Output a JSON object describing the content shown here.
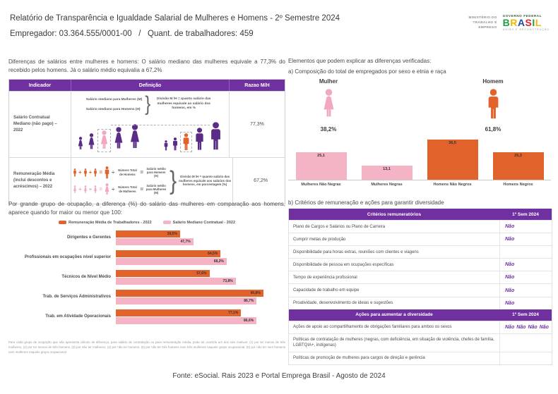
{
  "header": {
    "title": "Relatório de Transparência e Igualdade Salarial de Mulheres e Homens - 2º Semestre 2024",
    "employer": "Empregador: 03.364.555/0001-00",
    "separator": "/",
    "workers": "Quant. de trabalhadores: 459",
    "logo": {
      "ministry": "MINISTÉRIO DO TRABALHO E EMPREGO",
      "gov": "GOVERNO FEDERAL",
      "brand": "BRASIL",
      "tagline": "UNIÃO E RECONSTRUÇÃO",
      "brand_colors": [
        "#1e9e46",
        "#f2b705",
        "#1d4f9e",
        "#d92525",
        "#1e9e46",
        "#f2b705"
      ]
    }
  },
  "colors": {
    "purple": "#5b2c87",
    "header_purple": "#7030A0",
    "orange": "#e2622b",
    "pink": "#f2a9c0",
    "pink_bar": "#f5b3c6"
  },
  "left": {
    "intro": "Diferenças de salários entre mulheres e homens: O salário mediano das mulheres equivale a 77,3% do recebido pelos homens. Já o salário médio equivalia a 67,2%",
    "table": {
      "headers": [
        "Indicador",
        "Definição",
        "Razao M/H"
      ],
      "rows": [
        {
          "indicator": "Salário Contratual Mediano (não pago) – 2022",
          "def_line1": "Salário mediano para Mulheres (M)",
          "def_line2": "Salário mediano para Homens (H)",
          "def_result": "Divisão M /H = quanto salário das mulheres equivale ao salário dos homens, em %",
          "ratio": "77,3%"
        },
        {
          "indicator": "Remuneração Média (inclui descontos e acréscimos) – 2022",
          "men_divisor": "Número Total de Homens",
          "men_result": "Salário médio para Homens (H)",
          "women_divisor": "Número Total de Mulheres",
          "women_result": "Salário médio para Mulheres (M)",
          "def_result": "Divisão M /H = quanto salário das mulheres equivale aos salários dos homens, em porcentagem (%)",
          "ratio": "67,2%"
        }
      ]
    },
    "occupation_intro": "Por grande grupo de ocupação, a diferença (%) do salário das mulheres em comparação aos homens, aparece quando for maior ou menor que 100:",
    "footnote": "Para cada grupo de ocupação que não apresenta cálculo de diferença, para salário de contratação ou para remuneração média, pode ter ocorrido um dos seis motivos: (1) por ter menos de três mulheres, (2) por ter menos de três homens, (3) por não ter mulheres, (4) por não ter homens, (5) por não ter três homens nem três mulheres naquele grupo ocupacional, (6) por não ter nem homens nem mulheres naquele grupo ocupacional"
  },
  "right": {
    "intro": "Elementos que podem explicar as diferenças verificadas:",
    "section_a": "a) Composição do total de empregados por sexo e etnia e raça",
    "mulher": {
      "label": "Mulher",
      "value": "38,2%"
    },
    "homem": {
      "label": "Homem",
      "value": "61,8%"
    },
    "section_b": "b) Critérios de remuneração e ações para garantir diversidade",
    "no_label": "Não",
    "criteria": {
      "header": "Critérios remuneratórios",
      "period": "1º Sem 2024",
      "rows": [
        {
          "label": "Plano de Cargos e Salários ou Plano de Carreira",
          "badges": 1
        },
        {
          "label": "Cumprir metas de produção",
          "badges": 1
        },
        {
          "label": "Disponibilidade para horas extras, reuniões com clientes e viagens",
          "badges": 0
        },
        {
          "label": "Disponibilidade de pessoa em ocupações específicas",
          "badges": 1
        },
        {
          "label": "Tempo de experiência profissional",
          "badges": 1
        },
        {
          "label": "Capacidade de trabalho em equipe",
          "badges": 1
        },
        {
          "label": "Proatividade, desenvolvimento de ideias e sugestões",
          "badges": 1
        }
      ]
    },
    "actions": {
      "header": "Ações para aumentar a diversidade",
      "period": "1º Sem 2024",
      "rows": [
        {
          "label": "Ações de apoio ao compartilhamento de obrigações familiares para ambos os sexos",
          "badges": 4
        },
        {
          "label": "Políticas de contratação de mulheres (negras, com deficiência, em situação de violência, chefes de família, LGBTQIA+, indígenas)",
          "badges": 0
        },
        {
          "label": "Políticas de promoção de mulheres para cargos de direção e gerência",
          "badges": 0
        }
      ]
    }
  },
  "footer": {
    "source": "Fonte: eSocial. Rais 2023 e Portal Emprega Brasil - Agosto de 2024"
  },
  "chart_data": [
    {
      "id": "composition-by-sex-race",
      "type": "bar",
      "title": "a) Composição do total de empregados por sexo e etnia e raça",
      "categories": [
        "Mulheres Não Negras",
        "Mulheres Negras",
        "Homens Não Negros",
        "Homens Negros"
      ],
      "values": [
        25.1,
        13.1,
        36.5,
        25.3
      ],
      "labels": [
        "25,1",
        "13,1",
        "36,5",
        "25,3"
      ],
      "colors": [
        "#f5b3c6",
        "#f5b3c6",
        "#e2622b",
        "#e2622b"
      ],
      "xlabel": "",
      "ylabel": "",
      "ylim": [
        0,
        40
      ],
      "grid": false,
      "legend": "none"
    },
    {
      "id": "occupation-wage-gap",
      "type": "bar",
      "orientation": "horizontal",
      "title": "Por grande grupo de ocupação, a diferença (%) do salário das mulheres em comparação aos homens",
      "categories": [
        "Dirigentes e Gerentes",
        "Profissionais em ocupações nível superior",
        "Técnicos de Nível Médio",
        "Trab. de Serviços Administrativos",
        "Trab. em Atividade Operacionais"
      ],
      "series": [
        {
          "name": "Remuneração Média de Trabalhadores - 2022",
          "color": "#e2622b",
          "values": [
            39.5,
            64.5,
            57.6,
            90.8,
            77.1
          ],
          "labels": [
            "39,5%",
            "64,5%",
            "57,6%",
            "90,8%",
            "77,1%"
          ]
        },
        {
          "name": "Salário Mediano Contratual - 2022",
          "color": "#f5b3c6",
          "values": [
            47.7,
            68.2,
            73.8,
            86.7,
            86.6
          ],
          "labels": [
            "47,7%",
            "68,2%",
            "73,8%",
            "86,7%",
            "86,6%"
          ]
        }
      ],
      "xlim": [
        0,
        100
      ],
      "grid": false,
      "legend": "top"
    },
    {
      "id": "sex-composition-pictogram",
      "type": "bar",
      "title": "Composição por sexo",
      "categories": [
        "Mulher",
        "Homem"
      ],
      "values": [
        38.2,
        61.8
      ],
      "labels": [
        "38,2%",
        "61,8%"
      ]
    }
  ]
}
